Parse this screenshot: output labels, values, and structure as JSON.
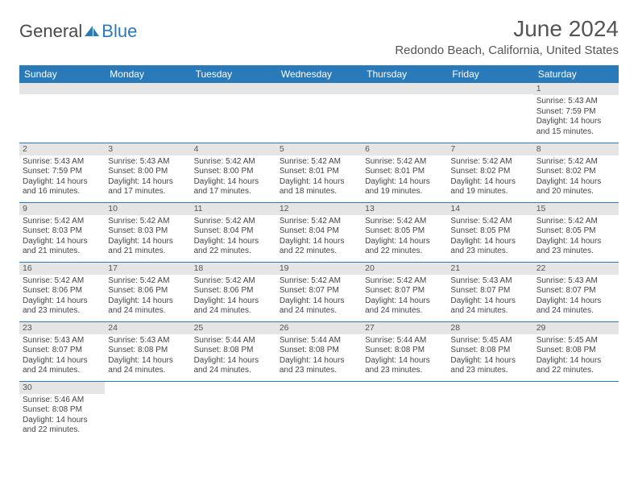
{
  "logo": {
    "text1": "General",
    "text2": "Blue"
  },
  "title": "June 2024",
  "location": "Redondo Beach, California, United States",
  "weekdays": [
    "Sunday",
    "Monday",
    "Tuesday",
    "Wednesday",
    "Thursday",
    "Friday",
    "Saturday"
  ],
  "colors": {
    "header_bg": "#2a7ab9",
    "daynum_bg": "#e5e5e5",
    "border": "#2a7ab9"
  },
  "weeks": [
    [
      null,
      null,
      null,
      null,
      null,
      null,
      {
        "n": "1",
        "sr": "Sunrise: 5:43 AM",
        "ss": "Sunset: 7:59 PM",
        "dl": "Daylight: 14 hours and 15 minutes."
      }
    ],
    [
      {
        "n": "2",
        "sr": "Sunrise: 5:43 AM",
        "ss": "Sunset: 7:59 PM",
        "dl": "Daylight: 14 hours and 16 minutes."
      },
      {
        "n": "3",
        "sr": "Sunrise: 5:43 AM",
        "ss": "Sunset: 8:00 PM",
        "dl": "Daylight: 14 hours and 17 minutes."
      },
      {
        "n": "4",
        "sr": "Sunrise: 5:42 AM",
        "ss": "Sunset: 8:00 PM",
        "dl": "Daylight: 14 hours and 17 minutes."
      },
      {
        "n": "5",
        "sr": "Sunrise: 5:42 AM",
        "ss": "Sunset: 8:01 PM",
        "dl": "Daylight: 14 hours and 18 minutes."
      },
      {
        "n": "6",
        "sr": "Sunrise: 5:42 AM",
        "ss": "Sunset: 8:01 PM",
        "dl": "Daylight: 14 hours and 19 minutes."
      },
      {
        "n": "7",
        "sr": "Sunrise: 5:42 AM",
        "ss": "Sunset: 8:02 PM",
        "dl": "Daylight: 14 hours and 19 minutes."
      },
      {
        "n": "8",
        "sr": "Sunrise: 5:42 AM",
        "ss": "Sunset: 8:02 PM",
        "dl": "Daylight: 14 hours and 20 minutes."
      }
    ],
    [
      {
        "n": "9",
        "sr": "Sunrise: 5:42 AM",
        "ss": "Sunset: 8:03 PM",
        "dl": "Daylight: 14 hours and 21 minutes."
      },
      {
        "n": "10",
        "sr": "Sunrise: 5:42 AM",
        "ss": "Sunset: 8:03 PM",
        "dl": "Daylight: 14 hours and 21 minutes."
      },
      {
        "n": "11",
        "sr": "Sunrise: 5:42 AM",
        "ss": "Sunset: 8:04 PM",
        "dl": "Daylight: 14 hours and 22 minutes."
      },
      {
        "n": "12",
        "sr": "Sunrise: 5:42 AM",
        "ss": "Sunset: 8:04 PM",
        "dl": "Daylight: 14 hours and 22 minutes."
      },
      {
        "n": "13",
        "sr": "Sunrise: 5:42 AM",
        "ss": "Sunset: 8:05 PM",
        "dl": "Daylight: 14 hours and 22 minutes."
      },
      {
        "n": "14",
        "sr": "Sunrise: 5:42 AM",
        "ss": "Sunset: 8:05 PM",
        "dl": "Daylight: 14 hours and 23 minutes."
      },
      {
        "n": "15",
        "sr": "Sunrise: 5:42 AM",
        "ss": "Sunset: 8:05 PM",
        "dl": "Daylight: 14 hours and 23 minutes."
      }
    ],
    [
      {
        "n": "16",
        "sr": "Sunrise: 5:42 AM",
        "ss": "Sunset: 8:06 PM",
        "dl": "Daylight: 14 hours and 23 minutes."
      },
      {
        "n": "17",
        "sr": "Sunrise: 5:42 AM",
        "ss": "Sunset: 8:06 PM",
        "dl": "Daylight: 14 hours and 24 minutes."
      },
      {
        "n": "18",
        "sr": "Sunrise: 5:42 AM",
        "ss": "Sunset: 8:06 PM",
        "dl": "Daylight: 14 hours and 24 minutes."
      },
      {
        "n": "19",
        "sr": "Sunrise: 5:42 AM",
        "ss": "Sunset: 8:07 PM",
        "dl": "Daylight: 14 hours and 24 minutes."
      },
      {
        "n": "20",
        "sr": "Sunrise: 5:42 AM",
        "ss": "Sunset: 8:07 PM",
        "dl": "Daylight: 14 hours and 24 minutes."
      },
      {
        "n": "21",
        "sr": "Sunrise: 5:43 AM",
        "ss": "Sunset: 8:07 PM",
        "dl": "Daylight: 14 hours and 24 minutes."
      },
      {
        "n": "22",
        "sr": "Sunrise: 5:43 AM",
        "ss": "Sunset: 8:07 PM",
        "dl": "Daylight: 14 hours and 24 minutes."
      }
    ],
    [
      {
        "n": "23",
        "sr": "Sunrise: 5:43 AM",
        "ss": "Sunset: 8:07 PM",
        "dl": "Daylight: 14 hours and 24 minutes."
      },
      {
        "n": "24",
        "sr": "Sunrise: 5:43 AM",
        "ss": "Sunset: 8:08 PM",
        "dl": "Daylight: 14 hours and 24 minutes."
      },
      {
        "n": "25",
        "sr": "Sunrise: 5:44 AM",
        "ss": "Sunset: 8:08 PM",
        "dl": "Daylight: 14 hours and 24 minutes."
      },
      {
        "n": "26",
        "sr": "Sunrise: 5:44 AM",
        "ss": "Sunset: 8:08 PM",
        "dl": "Daylight: 14 hours and 23 minutes."
      },
      {
        "n": "27",
        "sr": "Sunrise: 5:44 AM",
        "ss": "Sunset: 8:08 PM",
        "dl": "Daylight: 14 hours and 23 minutes."
      },
      {
        "n": "28",
        "sr": "Sunrise: 5:45 AM",
        "ss": "Sunset: 8:08 PM",
        "dl": "Daylight: 14 hours and 23 minutes."
      },
      {
        "n": "29",
        "sr": "Sunrise: 5:45 AM",
        "ss": "Sunset: 8:08 PM",
        "dl": "Daylight: 14 hours and 22 minutes."
      }
    ],
    [
      {
        "n": "30",
        "sr": "Sunrise: 5:46 AM",
        "ss": "Sunset: 8:08 PM",
        "dl": "Daylight: 14 hours and 22 minutes."
      },
      null,
      null,
      null,
      null,
      null,
      null
    ]
  ]
}
